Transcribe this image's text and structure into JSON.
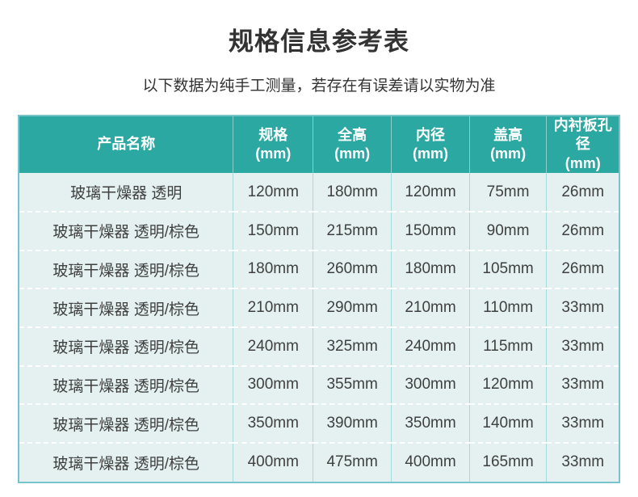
{
  "page": {
    "title": "规格信息参考表",
    "subtitle": "以下数据为纯手工测量，若存在有误差请以实物为准"
  },
  "table": {
    "columns": [
      {
        "label": "产品名称",
        "unit": ""
      },
      {
        "label": "规格",
        "unit": "(mm)"
      },
      {
        "label": "全高",
        "unit": "(mm)"
      },
      {
        "label": "内径",
        "unit": "(mm)"
      },
      {
        "label": "盖高",
        "unit": "(mm)"
      },
      {
        "label": "内衬板孔径",
        "unit": "(mm)"
      }
    ],
    "rows": [
      [
        "玻璃干燥器 透明",
        "120mm",
        "180mm",
        "120mm",
        "75mm",
        "26mm"
      ],
      [
        "玻璃干燥器 透明/棕色",
        "150mm",
        "215mm",
        "150mm",
        "90mm",
        "26mm"
      ],
      [
        "玻璃干燥器 透明/棕色",
        "180mm",
        "260mm",
        "180mm",
        "105mm",
        "26mm"
      ],
      [
        "玻璃干燥器 透明/棕色",
        "210mm",
        "290mm",
        "210mm",
        "110mm",
        "33mm"
      ],
      [
        "玻璃干燥器 透明/棕色",
        "240mm",
        "325mm",
        "240mm",
        "115mm",
        "33mm"
      ],
      [
        "玻璃干燥器 透明/棕色",
        "300mm",
        "355mm",
        "300mm",
        "120mm",
        "33mm"
      ],
      [
        "玻璃干燥器 透明/棕色",
        "350mm",
        "390mm",
        "350mm",
        "140mm",
        "33mm"
      ],
      [
        "玻璃干燥器 透明/棕色",
        "400mm",
        "475mm",
        "400mm",
        "165mm",
        "33mm"
      ]
    ]
  },
  "colors": {
    "header_bg": "#2ba8a1",
    "cell_bg": "#e4f1f0",
    "column_divider": "#a8dada",
    "row_divider_dashed": "#ffffff",
    "outer_border": "#79c4cb",
    "header_text": "#ffffff",
    "cell_text": "#404040",
    "title_text": "#333333"
  }
}
